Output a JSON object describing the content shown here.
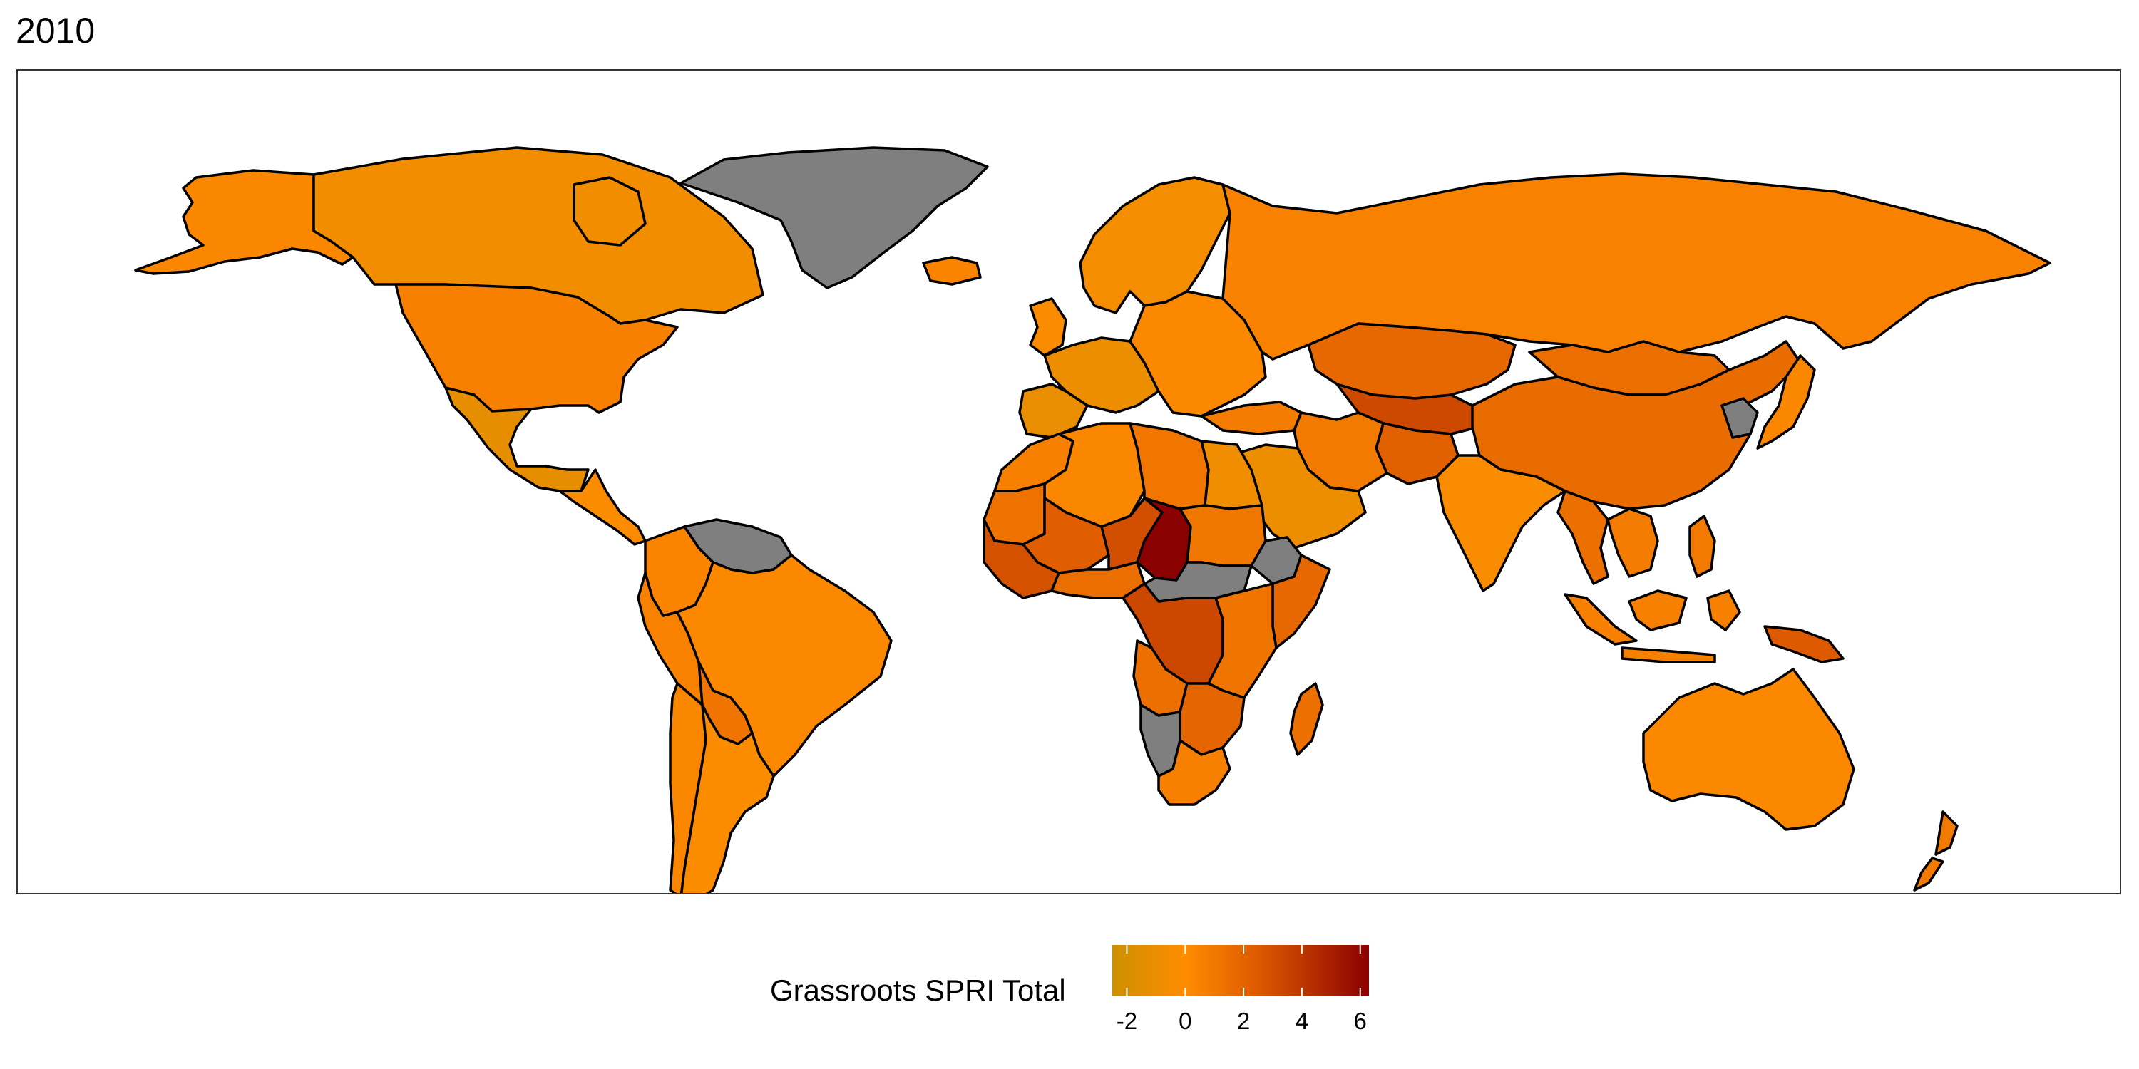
{
  "title": "2010",
  "legend": {
    "title": "Grassroots SPRI Total",
    "min": -2.5,
    "max": 6.3,
    "ticks": [
      {
        "value": -2,
        "label": "-2"
      },
      {
        "value": 0,
        "label": "0"
      },
      {
        "value": 2,
        "label": "2"
      },
      {
        "value": 4,
        "label": "4"
      },
      {
        "value": 6,
        "label": "6"
      }
    ],
    "gradient": [
      {
        "value": -2.5,
        "color": "#CC9000"
      },
      {
        "value": 0,
        "color": "#FF8C00"
      },
      {
        "value": 2.5,
        "color": "#DD5A00"
      },
      {
        "value": 6.3,
        "color": "#8B0000"
      }
    ]
  },
  "colors": {
    "no_data": "#7F7F7F",
    "border": "#000000",
    "ocean": "#FFFFFF"
  },
  "regions": [
    {
      "name": "alaska",
      "value": 0.3
    },
    {
      "name": "canada",
      "value": -0.6
    },
    {
      "name": "usa",
      "value": 0.6
    },
    {
      "name": "mexico",
      "value": -1.2
    },
    {
      "name": "central-america",
      "value": -0.2
    },
    {
      "name": "venezuela",
      "value": null
    },
    {
      "name": "colombia",
      "value": 0.4
    },
    {
      "name": "brazil",
      "value": 0.2
    },
    {
      "name": "peru",
      "value": 0.5
    },
    {
      "name": "bolivia",
      "value": 1.2
    },
    {
      "name": "argentina",
      "value": -0.2
    },
    {
      "name": "chile",
      "value": 0.3
    },
    {
      "name": "greenland",
      "value": null
    },
    {
      "name": "iceland",
      "value": 0.4
    },
    {
      "name": "scandinavia",
      "value": -0.5
    },
    {
      "name": "uk",
      "value": -0.3
    },
    {
      "name": "western-europe",
      "value": -0.9
    },
    {
      "name": "iberia",
      "value": -1.1
    },
    {
      "name": "eastern-europe",
      "value": 0.2
    },
    {
      "name": "russia",
      "value": 0.5
    },
    {
      "name": "kazakhstan",
      "value": 1.8
    },
    {
      "name": "central-asia",
      "value": 3.2
    },
    {
      "name": "afghanistan",
      "value": 2.2
    },
    {
      "name": "mongolia",
      "value": 1.5
    },
    {
      "name": "china",
      "value": 1.6
    },
    {
      "name": "korea",
      "value": null
    },
    {
      "name": "japan",
      "value": 0.3
    },
    {
      "name": "india",
      "value": -0.3
    },
    {
      "name": "iran",
      "value": 0.9
    },
    {
      "name": "arabia",
      "value": -0.9
    },
    {
      "name": "turkey",
      "value": 0.8
    },
    {
      "name": "southeast-asia",
      "value": 0.8
    },
    {
      "name": "myanmar-thai",
      "value": 1.4
    },
    {
      "name": "indonesia",
      "value": 0.6
    },
    {
      "name": "png",
      "value": 2.5
    },
    {
      "name": "philippines",
      "value": 0.9
    },
    {
      "name": "australia",
      "value": 0.2
    },
    {
      "name": "new-zealand",
      "value": 0.9
    },
    {
      "name": "morocco",
      "value": 0.6
    },
    {
      "name": "algeria",
      "value": 0.3
    },
    {
      "name": "libya",
      "value": 1.1
    },
    {
      "name": "egypt",
      "value": -0.7
    },
    {
      "name": "mauritania",
      "value": 1.3
    },
    {
      "name": "mali",
      "value": 2.3
    },
    {
      "name": "niger",
      "value": 3.0
    },
    {
      "name": "chad",
      "value": 6.3
    },
    {
      "name": "sudan",
      "value": 1.0
    },
    {
      "name": "ethiopia",
      "value": null
    },
    {
      "name": "somalia",
      "value": 1.8
    },
    {
      "name": "west-africa-coast",
      "value": 2.9
    },
    {
      "name": "nigeria",
      "value": 1.5
    },
    {
      "name": "car-south-sudan",
      "value": null
    },
    {
      "name": "drc",
      "value": 3.3
    },
    {
      "name": "east-africa",
      "value": 1.2
    },
    {
      "name": "angola",
      "value": 1.4
    },
    {
      "name": "namibia",
      "value": null
    },
    {
      "name": "southern-africa",
      "value": 1.9
    },
    {
      "name": "south-africa",
      "value": 0.6
    },
    {
      "name": "madagascar",
      "value": 1.4
    }
  ]
}
